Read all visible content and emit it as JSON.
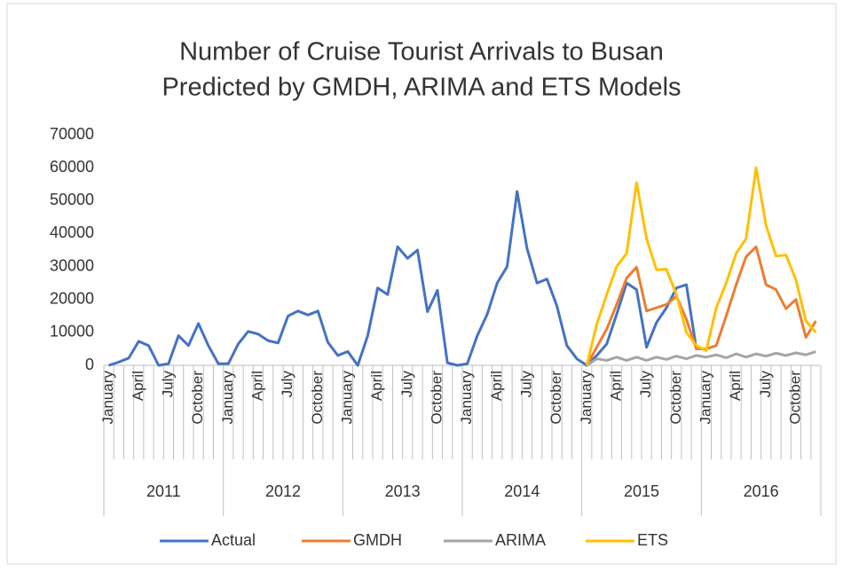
{
  "chart_data": {
    "type": "line",
    "title": [
      "Number of Cruise Tourist Arrivals to Busan",
      "Predicted by GMDH, ARIMA and ETS Models"
    ],
    "categories": [
      "January",
      null,
      null,
      "April",
      null,
      null,
      "July",
      null,
      null,
      "October",
      null,
      null,
      "January",
      null,
      null,
      "April",
      null,
      null,
      "July",
      null,
      null,
      "October",
      null,
      null,
      "January",
      null,
      null,
      "April",
      null,
      null,
      "July",
      null,
      null,
      "October",
      null,
      null,
      "January",
      null,
      null,
      "April",
      null,
      null,
      "July",
      null,
      null,
      "October",
      null,
      null,
      "January",
      null,
      null,
      "April",
      null,
      null,
      "July",
      null,
      null,
      "October",
      null,
      null,
      "January",
      null,
      null,
      "April",
      null,
      null,
      "July",
      null,
      null,
      "October",
      null,
      null
    ],
    "groups": [
      "2011",
      "2012",
      "2013",
      "2014",
      "2015",
      "2016"
    ],
    "series": [
      {
        "name": "Actual",
        "color": "#4472c4",
        "values": [
          0,
          1000,
          2200,
          7300,
          6000,
          0,
          500,
          9000,
          6000,
          12700,
          6000,
          500,
          500,
          6500,
          10300,
          9500,
          7500,
          6800,
          15000,
          16500,
          15300,
          16500,
          7000,
          3000,
          4200,
          0,
          9000,
          23500,
          21500,
          36000,
          32500,
          35000,
          16300,
          22800,
          800,
          0,
          500,
          9000,
          15500,
          25000,
          30000,
          52800,
          35500,
          25000,
          26200,
          18000,
          6000,
          2000,
          0,
          3000,
          6500,
          15500,
          25000,
          23000,
          5500,
          13000,
          17500,
          23500,
          24500,
          5000,
          null,
          null,
          null,
          null,
          null,
          null,
          null,
          null,
          null,
          null,
          null,
          null
        ]
      },
      {
        "name": "GMDH",
        "color": "#ed7d31",
        "values": [
          null,
          null,
          null,
          null,
          null,
          null,
          null,
          null,
          null,
          null,
          null,
          null,
          null,
          null,
          null,
          null,
          null,
          null,
          null,
          null,
          null,
          null,
          null,
          null,
          null,
          null,
          null,
          null,
          null,
          null,
          null,
          null,
          null,
          null,
          null,
          null,
          null,
          null,
          null,
          null,
          null,
          null,
          null,
          null,
          null,
          null,
          null,
          null,
          0,
          5500,
          11000,
          18500,
          26500,
          29800,
          16500,
          17500,
          18500,
          21000,
          14000,
          5000,
          5000,
          6000,
          15000,
          24500,
          33000,
          36000,
          24500,
          23000,
          17200,
          20000,
          8500,
          13500
        ]
      },
      {
        "name": "ARIMA",
        "color": "#a5a5a5",
        "values": [
          null,
          null,
          null,
          null,
          null,
          null,
          null,
          null,
          null,
          null,
          null,
          null,
          null,
          null,
          null,
          null,
          null,
          null,
          null,
          null,
          null,
          null,
          null,
          null,
          null,
          null,
          null,
          null,
          null,
          null,
          null,
          null,
          null,
          null,
          null,
          null,
          null,
          null,
          null,
          null,
          null,
          null,
          null,
          null,
          null,
          null,
          null,
          null,
          0,
          2000,
          1500,
          2500,
          1500,
          2500,
          1500,
          2500,
          1800,
          2800,
          2000,
          3000,
          2500,
          3200,
          2300,
          3500,
          2500,
          3500,
          2800,
          3700,
          3000,
          3800,
          3200,
          4200
        ]
      },
      {
        "name": "ETS",
        "color": "#ffc000",
        "values": [
          null,
          null,
          null,
          null,
          null,
          null,
          null,
          null,
          null,
          null,
          null,
          null,
          null,
          null,
          null,
          null,
          null,
          null,
          null,
          null,
          null,
          null,
          null,
          null,
          null,
          null,
          null,
          null,
          null,
          null,
          null,
          null,
          null,
          null,
          null,
          null,
          null,
          null,
          null,
          null,
          null,
          null,
          null,
          null,
          null,
          null,
          null,
          null,
          0,
          12500,
          21500,
          30000,
          34000,
          55500,
          38500,
          29000,
          29200,
          21500,
          10000,
          6000,
          4500,
          17500,
          25000,
          34000,
          38500,
          60000,
          42500,
          33200,
          33500,
          26000,
          13500,
          10000
        ]
      }
    ],
    "ylim": [
      0,
      70000
    ],
    "yticks": [
      0,
      10000,
      20000,
      30000,
      40000,
      50000,
      60000,
      70000
    ],
    "legend": "bottom"
  }
}
